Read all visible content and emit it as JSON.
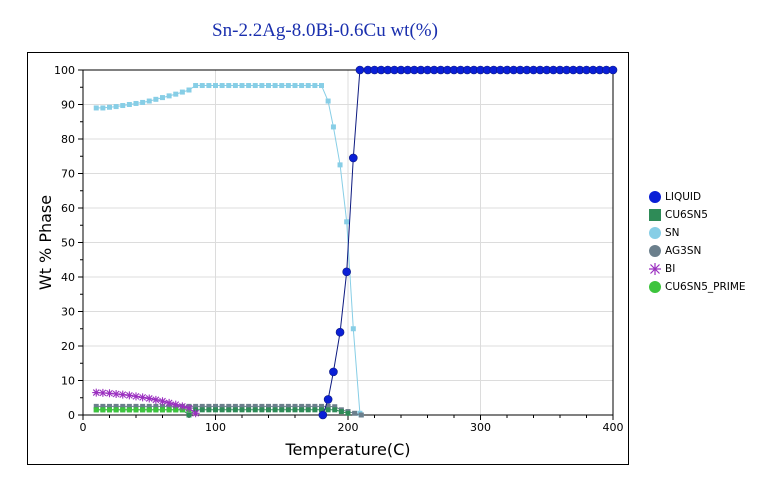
{
  "chart_data": {
    "type": "line",
    "title": "Sn-2.2Ag-8.0Bi-0.6Cu wt(%)",
    "xlabel": "Temperature(C)",
    "ylabel": "Wt % Phase",
    "xlim": [
      0,
      400
    ],
    "ylim": [
      0,
      100
    ],
    "xticks": [
      0,
      100,
      200,
      300,
      400
    ],
    "yticks": [
      0,
      10,
      20,
      30,
      40,
      50,
      60,
      70,
      80,
      90,
      100
    ],
    "grid": true,
    "legend_position": "right",
    "series": [
      {
        "name": "LIQUID",
        "color": "#0a1fd6",
        "line_color": "#0d1a80",
        "marker": "circle",
        "points": [
          [
            181,
            0
          ],
          [
            185,
            4.5
          ],
          [
            189,
            12.5
          ],
          [
            194,
            24
          ],
          [
            199,
            41.5
          ],
          [
            204,
            74.5
          ],
          [
            209,
            100
          ],
          [
            215,
            100
          ],
          [
            220,
            100
          ],
          [
            225,
            100
          ],
          [
            230,
            100
          ],
          [
            235,
            100
          ],
          [
            240,
            100
          ],
          [
            245,
            100
          ],
          [
            250,
            100
          ],
          [
            255,
            100
          ],
          [
            260,
            100
          ],
          [
            265,
            100
          ],
          [
            270,
            100
          ],
          [
            275,
            100
          ],
          [
            280,
            100
          ],
          [
            285,
            100
          ],
          [
            290,
            100
          ],
          [
            295,
            100
          ],
          [
            300,
            100
          ],
          [
            305,
            100
          ],
          [
            310,
            100
          ],
          [
            315,
            100
          ],
          [
            320,
            100
          ],
          [
            325,
            100
          ],
          [
            330,
            100
          ],
          [
            335,
            100
          ],
          [
            340,
            100
          ],
          [
            345,
            100
          ],
          [
            350,
            100
          ],
          [
            355,
            100
          ],
          [
            360,
            100
          ],
          [
            365,
            100
          ],
          [
            370,
            100
          ],
          [
            375,
            100
          ],
          [
            380,
            100
          ],
          [
            385,
            100
          ],
          [
            390,
            100
          ],
          [
            395,
            100
          ],
          [
            400,
            100
          ]
        ]
      },
      {
        "name": "CU6SN5",
        "color": "#2e8b57",
        "line_color": "#2e8b57",
        "marker": "square",
        "points": [
          [
            10,
            1.5
          ],
          [
            15,
            1.5
          ],
          [
            20,
            1.5
          ],
          [
            25,
            1.5
          ],
          [
            30,
            1.5
          ],
          [
            35,
            1.5
          ],
          [
            40,
            1.5
          ],
          [
            45,
            1.5
          ],
          [
            50,
            1.5
          ],
          [
            55,
            1.5
          ],
          [
            60,
            1.5
          ],
          [
            65,
            1.5
          ],
          [
            70,
            1.5
          ],
          [
            75,
            1.5
          ],
          [
            80,
            0
          ],
          [
            85,
            1.5
          ],
          [
            90,
            1.5
          ],
          [
            95,
            1.5
          ],
          [
            100,
            1.5
          ],
          [
            105,
            1.5
          ],
          [
            110,
            1.5
          ],
          [
            115,
            1.5
          ],
          [
            120,
            1.5
          ],
          [
            125,
            1.5
          ],
          [
            130,
            1.5
          ],
          [
            135,
            1.5
          ],
          [
            140,
            1.5
          ],
          [
            145,
            1.5
          ],
          [
            150,
            1.5
          ],
          [
            155,
            1.5
          ],
          [
            160,
            1.5
          ],
          [
            165,
            1.5
          ],
          [
            170,
            1.5
          ],
          [
            175,
            1.5
          ],
          [
            180,
            1.5
          ],
          [
            185,
            1.5
          ],
          [
            190,
            1.5
          ],
          [
            195,
            1
          ],
          [
            200,
            0.5
          ]
        ]
      },
      {
        "name": "SN",
        "color": "#87cee6",
        "line_color": "#87cee6",
        "marker": "square",
        "points": [
          [
            10,
            89
          ],
          [
            15,
            89
          ],
          [
            20,
            89.2
          ],
          [
            25,
            89.4
          ],
          [
            30,
            89.7
          ],
          [
            35,
            90
          ],
          [
            40,
            90.3
          ],
          [
            45,
            90.6
          ],
          [
            50,
            91
          ],
          [
            55,
            91.5
          ],
          [
            60,
            92
          ],
          [
            65,
            92.5
          ],
          [
            70,
            93
          ],
          [
            75,
            93.6
          ],
          [
            80,
            94.2
          ],
          [
            85,
            95.5
          ],
          [
            90,
            95.5
          ],
          [
            95,
            95.5
          ],
          [
            100,
            95.5
          ],
          [
            105,
            95.5
          ],
          [
            110,
            95.5
          ],
          [
            115,
            95.5
          ],
          [
            120,
            95.5
          ],
          [
            125,
            95.5
          ],
          [
            130,
            95.5
          ],
          [
            135,
            95.5
          ],
          [
            140,
            95.5
          ],
          [
            145,
            95.5
          ],
          [
            150,
            95.5
          ],
          [
            155,
            95.5
          ],
          [
            160,
            95.5
          ],
          [
            165,
            95.5
          ],
          [
            170,
            95.5
          ],
          [
            175,
            95.5
          ],
          [
            180,
            95.5
          ],
          [
            185,
            91
          ],
          [
            189,
            83.5
          ],
          [
            194,
            72.5
          ],
          [
            199,
            56
          ],
          [
            204,
            25
          ],
          [
            209,
            0.5
          ],
          [
            210,
            0
          ]
        ]
      },
      {
        "name": "AG3SN",
        "color": "#6b7f8c",
        "line_color": "#6b7f8c",
        "marker": "square",
        "points": [
          [
            10,
            2.5
          ],
          [
            15,
            2.5
          ],
          [
            20,
            2.5
          ],
          [
            25,
            2.5
          ],
          [
            30,
            2.5
          ],
          [
            35,
            2.5
          ],
          [
            40,
            2.5
          ],
          [
            45,
            2.5
          ],
          [
            50,
            2.5
          ],
          [
            55,
            2.5
          ],
          [
            60,
            2.5
          ],
          [
            65,
            2.5
          ],
          [
            70,
            2.5
          ],
          [
            75,
            2.5
          ],
          [
            80,
            2.5
          ],
          [
            85,
            2.5
          ],
          [
            90,
            2.5
          ],
          [
            95,
            2.5
          ],
          [
            100,
            2.5
          ],
          [
            105,
            2.5
          ],
          [
            110,
            2.5
          ],
          [
            115,
            2.5
          ],
          [
            120,
            2.5
          ],
          [
            125,
            2.5
          ],
          [
            130,
            2.5
          ],
          [
            135,
            2.5
          ],
          [
            140,
            2.5
          ],
          [
            145,
            2.5
          ],
          [
            150,
            2.5
          ],
          [
            155,
            2.5
          ],
          [
            160,
            2.5
          ],
          [
            165,
            2.5
          ],
          [
            170,
            2.5
          ],
          [
            175,
            2.5
          ],
          [
            180,
            2.5
          ],
          [
            185,
            2.5
          ],
          [
            190,
            2.4
          ],
          [
            195,
            1.5
          ],
          [
            200,
            1
          ],
          [
            205,
            0.5
          ],
          [
            210,
            0
          ]
        ]
      },
      {
        "name": "BI",
        "color": "#9b30c0",
        "line_color": "#9b30c0",
        "marker": "star",
        "points": [
          [
            10,
            6.5
          ],
          [
            15,
            6.4
          ],
          [
            20,
            6.3
          ],
          [
            25,
            6.1
          ],
          [
            30,
            5.9
          ],
          [
            35,
            5.7
          ],
          [
            40,
            5.4
          ],
          [
            45,
            5.1
          ],
          [
            50,
            4.8
          ],
          [
            55,
            4.4
          ],
          [
            60,
            4
          ],
          [
            65,
            3.5
          ],
          [
            70,
            3
          ],
          [
            75,
            2.5
          ],
          [
            80,
            2
          ],
          [
            85,
            0.5
          ]
        ]
      },
      {
        "name": "CU6SN5_PRIME",
        "color": "#3dc43d",
        "line_color": "#3dc43d",
        "marker": "square",
        "points": [
          [
            10,
            1.5
          ],
          [
            15,
            1.5
          ],
          [
            20,
            1.5
          ],
          [
            25,
            1.5
          ],
          [
            30,
            1.5
          ],
          [
            35,
            1.5
          ],
          [
            40,
            1.5
          ],
          [
            45,
            1.5
          ],
          [
            50,
            1.5
          ],
          [
            55,
            1.5
          ],
          [
            60,
            1.5
          ],
          [
            65,
            1.5
          ],
          [
            70,
            1.5
          ],
          [
            75,
            1.5
          ],
          [
            80,
            1.5
          ]
        ]
      }
    ]
  }
}
